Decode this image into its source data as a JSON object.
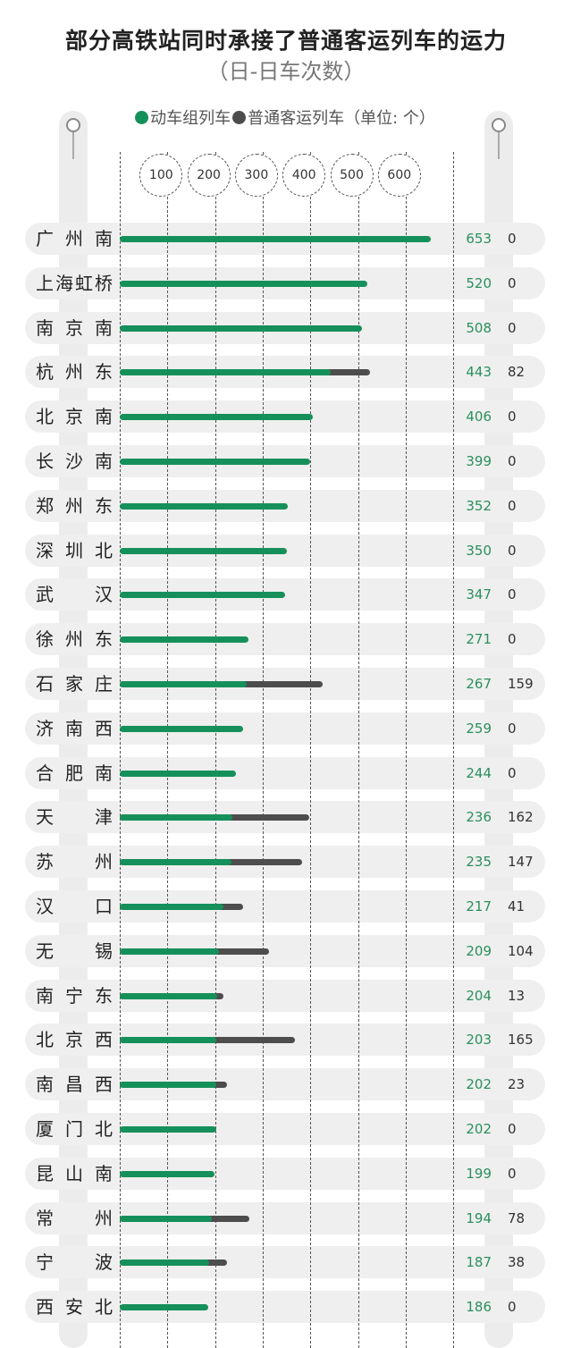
{
  "title": "部分高铁站同时承接了普通客运列车的运力",
  "subtitle": "（日-日车次数）",
  "legend": {
    "series1": "动车组列车",
    "series2": "普通客运列车（单位: 个）",
    "color1": "#16905a",
    "color2": "#4d4d4d"
  },
  "chart_data": {
    "type": "bar",
    "orientation": "horizontal",
    "stacked": true,
    "title": "部分高铁站同时承接了普通客运列车的运力",
    "subtitle": "（日-日车次数）",
    "x_ticks": [
      100,
      200,
      300,
      400,
      500,
      600
    ],
    "categories": [
      "广州南",
      "上海虹桥",
      "南京南",
      "杭州东",
      "北京南",
      "长沙南",
      "郑州东",
      "深圳北",
      "武汉",
      "徐州东",
      "石家庄",
      "济南西",
      "合肥南",
      "天津",
      "苏州",
      "汉口",
      "无锡",
      "南宁东",
      "北京西",
      "南昌西",
      "厦门北",
      "昆山南",
      "常州",
      "宁波",
      "西安北"
    ],
    "series": [
      {
        "name": "动车组列车",
        "color": "#16905a",
        "values": [
          653,
          520,
          508,
          443,
          406,
          399,
          352,
          350,
          347,
          271,
          267,
          259,
          244,
          236,
          235,
          217,
          209,
          204,
          203,
          202,
          202,
          199,
          194,
          187,
          186
        ]
      },
      {
        "name": "普通客运列车",
        "color": "#4d4d4d",
        "values": [
          0,
          0,
          0,
          82,
          0,
          0,
          0,
          0,
          0,
          0,
          159,
          0,
          0,
          162,
          147,
          41,
          104,
          13,
          165,
          23,
          0,
          0,
          78,
          38,
          0
        ]
      }
    ],
    "unit": "个"
  },
  "station_labels": [
    "广 州 南",
    "上海虹桥",
    "南 京 南",
    "杭 州 东",
    "北 京 南",
    "长 沙 南",
    "郑 州 东",
    "深 圳 北",
    "武 汉",
    "徐 州 东",
    "石 家 庄",
    "济 南 西",
    "合 肥 南",
    "天 津",
    "苏 州",
    "汉 口",
    "无 锡",
    "南 宁 东",
    "北 京 西",
    "南 昌 西",
    "厦 门 北",
    "昆 山 南",
    "常 州",
    "宁 波",
    "西 安 北"
  ]
}
